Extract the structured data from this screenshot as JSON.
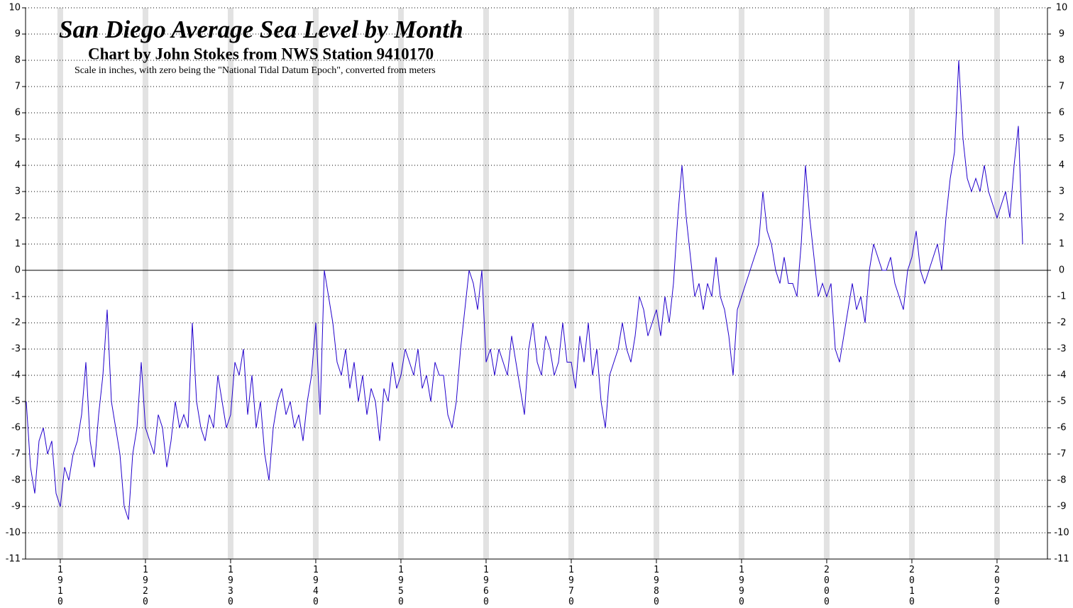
{
  "chart_data": {
    "type": "line",
    "title": "San Diego Average Sea Level by Month",
    "subtitle": "Chart by John Stokes from NWS Station 9410170",
    "note": "Scale in inches, with zero being the \"National Tidal Datum Epoch\", converted from meters",
    "xlim": [
      1905.92,
      2025.92
    ],
    "ylim": [
      -11,
      10
    ],
    "xticks": [
      1910,
      1920,
      1930,
      1940,
      1950,
      1960,
      1970,
      1980,
      1990,
      2000,
      2010,
      2020
    ],
    "yticks": [
      -11,
      -10,
      -9,
      -8,
      -7,
      -6,
      -5,
      -4,
      -3,
      -2,
      -1,
      0,
      1,
      2,
      3,
      4,
      5,
      6,
      7,
      8,
      9,
      10
    ],
    "grid": true,
    "series": [
      {
        "color": "#2200cc",
        "x": [
          1906,
          1906.5,
          1907,
          1907.5,
          1908,
          1908.5,
          1909,
          1909.5,
          1910,
          1910.5,
          1911,
          1911.5,
          1912,
          1912.5,
          1913,
          1913.5,
          1914,
          1914.5,
          1915,
          1915.5,
          1916,
          1916.5,
          1917,
          1917.5,
          1918,
          1918.5,
          1919,
          1919.5,
          1920,
          1920.5,
          1921,
          1921.5,
          1922,
          1922.5,
          1923,
          1923.5,
          1924,
          1924.5,
          1925,
          1925.5,
          1926,
          1926.5,
          1927,
          1927.5,
          1928,
          1928.5,
          1929,
          1929.5,
          1930,
          1930.5,
          1931,
          1931.5,
          1932,
          1932.5,
          1933,
          1933.5,
          1934,
          1934.5,
          1935,
          1935.5,
          1936,
          1936.5,
          1937,
          1937.5,
          1938,
          1938.5,
          1939,
          1939.5,
          1940,
          1940.5,
          1941,
          1941.5,
          1942,
          1942.5,
          1943,
          1943.5,
          1944,
          1944.5,
          1945,
          1945.5,
          1946,
          1946.5,
          1947,
          1947.5,
          1948,
          1948.5,
          1949,
          1949.5,
          1950,
          1950.5,
          1951,
          1951.5,
          1952,
          1952.5,
          1953,
          1953.5,
          1954,
          1954.5,
          1955,
          1955.5,
          1956,
          1956.5,
          1957,
          1957.5,
          1958,
          1958.5,
          1959,
          1959.5,
          1960,
          1960.5,
          1961,
          1961.5,
          1962,
          1962.5,
          1963,
          1963.5,
          1964,
          1964.5,
          1965,
          1965.5,
          1966,
          1966.5,
          1967,
          1967.5,
          1968,
          1968.5,
          1969,
          1969.5,
          1970,
          1970.5,
          1971,
          1971.5,
          1972,
          1972.5,
          1973,
          1973.5,
          1974,
          1974.5,
          1975,
          1975.5,
          1976,
          1976.5,
          1977,
          1977.5,
          1978,
          1978.5,
          1979,
          1979.5,
          1980,
          1980.5,
          1981,
          1981.5,
          1982,
          1982.5,
          1983,
          1983.5,
          1984,
          1984.5,
          1985,
          1985.5,
          1986,
          1986.5,
          1987,
          1987.5,
          1988,
          1988.5,
          1989,
          1989.5,
          1990,
          1990.5,
          1991,
          1991.5,
          1992,
          1992.5,
          1993,
          1993.5,
          1994,
          1994.5,
          1995,
          1995.5,
          1996,
          1996.5,
          1997,
          1997.5,
          1998,
          1998.5,
          1999,
          1999.5,
          2000,
          2000.5,
          2001,
          2001.5,
          2002,
          2002.5,
          2003,
          2003.5,
          2004,
          2004.5,
          2005,
          2005.5,
          2006,
          2006.5,
          2007,
          2007.5,
          2008,
          2008.5,
          2009,
          2009.5,
          2010,
          2010.5,
          2011,
          2011.5,
          2012,
          2012.5,
          2013,
          2013.5,
          2014,
          2014.5,
          2015,
          2015.5,
          2016,
          2016.5,
          2017,
          2017.5,
          2018,
          2018.5,
          2019,
          2019.5,
          2020,
          2020.5,
          2021,
          2021.5,
          2022,
          2022.5,
          2023
        ],
        "values": [
          -5,
          -7.5,
          -8.5,
          -6.5,
          -6,
          -7,
          -6.5,
          -8.5,
          -9,
          -7.5,
          -8,
          -7,
          -6.5,
          -5.5,
          -3.5,
          -6.5,
          -7.5,
          -5.5,
          -4,
          -1.5,
          -5,
          -6,
          -7,
          -9,
          -9.5,
          -7,
          -6,
          -3.5,
          -6,
          -6.5,
          -7,
          -5.5,
          -6,
          -7.5,
          -6.5,
          -5,
          -6,
          -5.5,
          -6,
          -2,
          -5,
          -6,
          -6.5,
          -5.5,
          -6,
          -4,
          -5,
          -6,
          -5.5,
          -3.5,
          -4,
          -3,
          -5.5,
          -4,
          -6,
          -5,
          -7,
          -8,
          -6,
          -5,
          -4.5,
          -5.5,
          -5,
          -6,
          -5.5,
          -6.5,
          -5,
          -4,
          -2,
          -5.5,
          0,
          -1,
          -2,
          -3.5,
          -4,
          -3,
          -4.5,
          -3.5,
          -5,
          -4,
          -5.5,
          -4.5,
          -5,
          -6.5,
          -4.5,
          -5,
          -3.5,
          -4.5,
          -4,
          -3,
          -3.5,
          -4,
          -3,
          -4.5,
          -4,
          -5,
          -3.5,
          -4,
          -4,
          -5.5,
          -6,
          -5,
          -3,
          -1.5,
          0,
          -0.5,
          -1.5,
          0,
          -3.5,
          -3,
          -4,
          -3,
          -3.5,
          -4,
          -2.5,
          -3.5,
          -4.5,
          -5.5,
          -3,
          -2,
          -3.5,
          -4,
          -2.5,
          -3,
          -4,
          -3.5,
          -2,
          -3.5,
          -3.5,
          -4.5,
          -2.5,
          -3.5,
          -2,
          -4,
          -3,
          -5,
          -6,
          -4,
          -3.5,
          -3,
          -2,
          -3,
          -3.5,
          -2.5,
          -1,
          -1.5,
          -2.5,
          -2,
          -1.5,
          -2.5,
          -1,
          -2,
          -0.5,
          2,
          4,
          2,
          0.5,
          -1,
          -0.5,
          -1.5,
          -0.5,
          -1,
          0.5,
          -1,
          -1.5,
          -2.5,
          -4,
          -1.5,
          -1,
          -0.5,
          0,
          0.5,
          1,
          3,
          1.5,
          1,
          0,
          -0.5,
          0.5,
          -0.5,
          -0.5,
          -1,
          1,
          4,
          2,
          0.5,
          -1,
          -0.5,
          -1,
          -0.5,
          -3,
          -3.5,
          -2.5,
          -1.5,
          -0.5,
          -1.5,
          -1,
          -2,
          0,
          1,
          0.5,
          0,
          0,
          0.5,
          -0.5,
          -1,
          -1.5,
          0,
          0.5,
          1.5,
          0,
          -0.5,
          0,
          0.5,
          1,
          0,
          2,
          3.5,
          4.5,
          8,
          5,
          3.5,
          3,
          3.5,
          3,
          4,
          3,
          2.5,
          2,
          2.5,
          3,
          2,
          4,
          5.5,
          1
        ]
      }
    ]
  }
}
